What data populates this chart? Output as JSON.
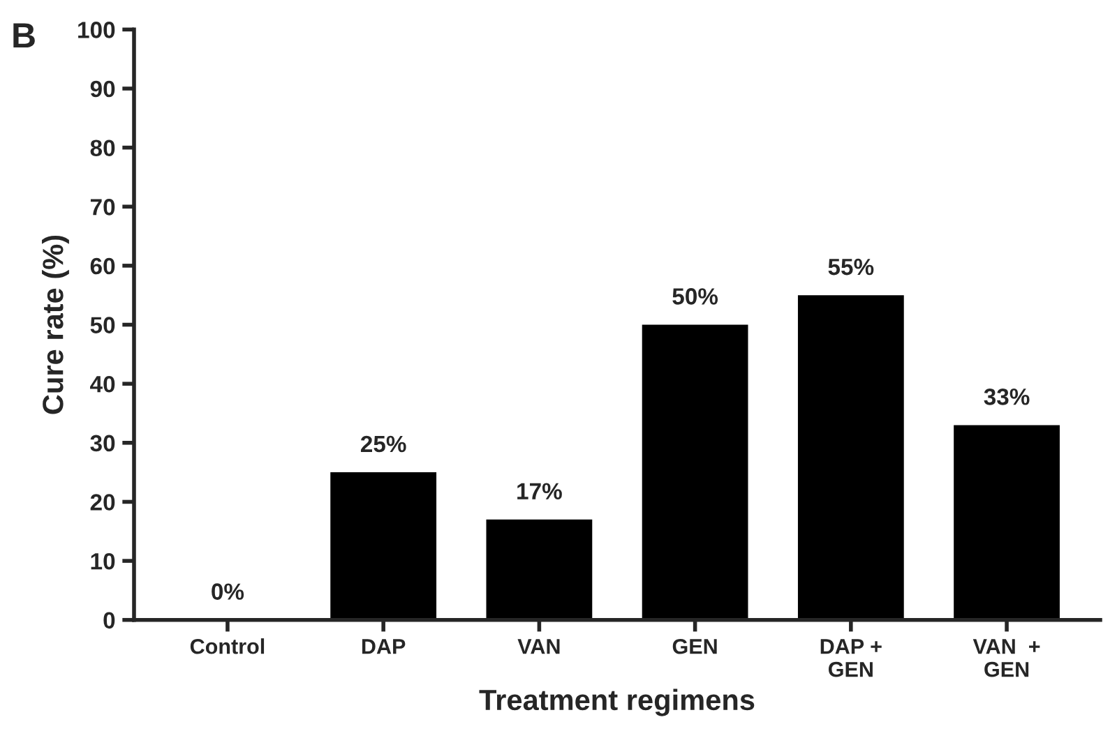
{
  "chart_data": {
    "type": "bar",
    "xlabel": "Treatment regimens",
    "ylabel": "Cure rate (%)",
    "categories": [
      "Control",
      "DAP",
      "VAN",
      "GEN",
      "DAP +\nGEN",
      "VAN  +\nGEN"
    ],
    "values": [
      0,
      25,
      17,
      50,
      55,
      33
    ],
    "value_labels": [
      "0%",
      "25%",
      "17%",
      "50%",
      "55%",
      "33%"
    ],
    "color": "#000000",
    "ylim": [
      0,
      100
    ],
    "yticks": [
      0,
      10,
      20,
      30,
      40,
      50,
      60,
      70,
      80,
      90,
      100
    ],
    "grid": false,
    "legend": false,
    "annotations": [
      "B"
    ]
  }
}
